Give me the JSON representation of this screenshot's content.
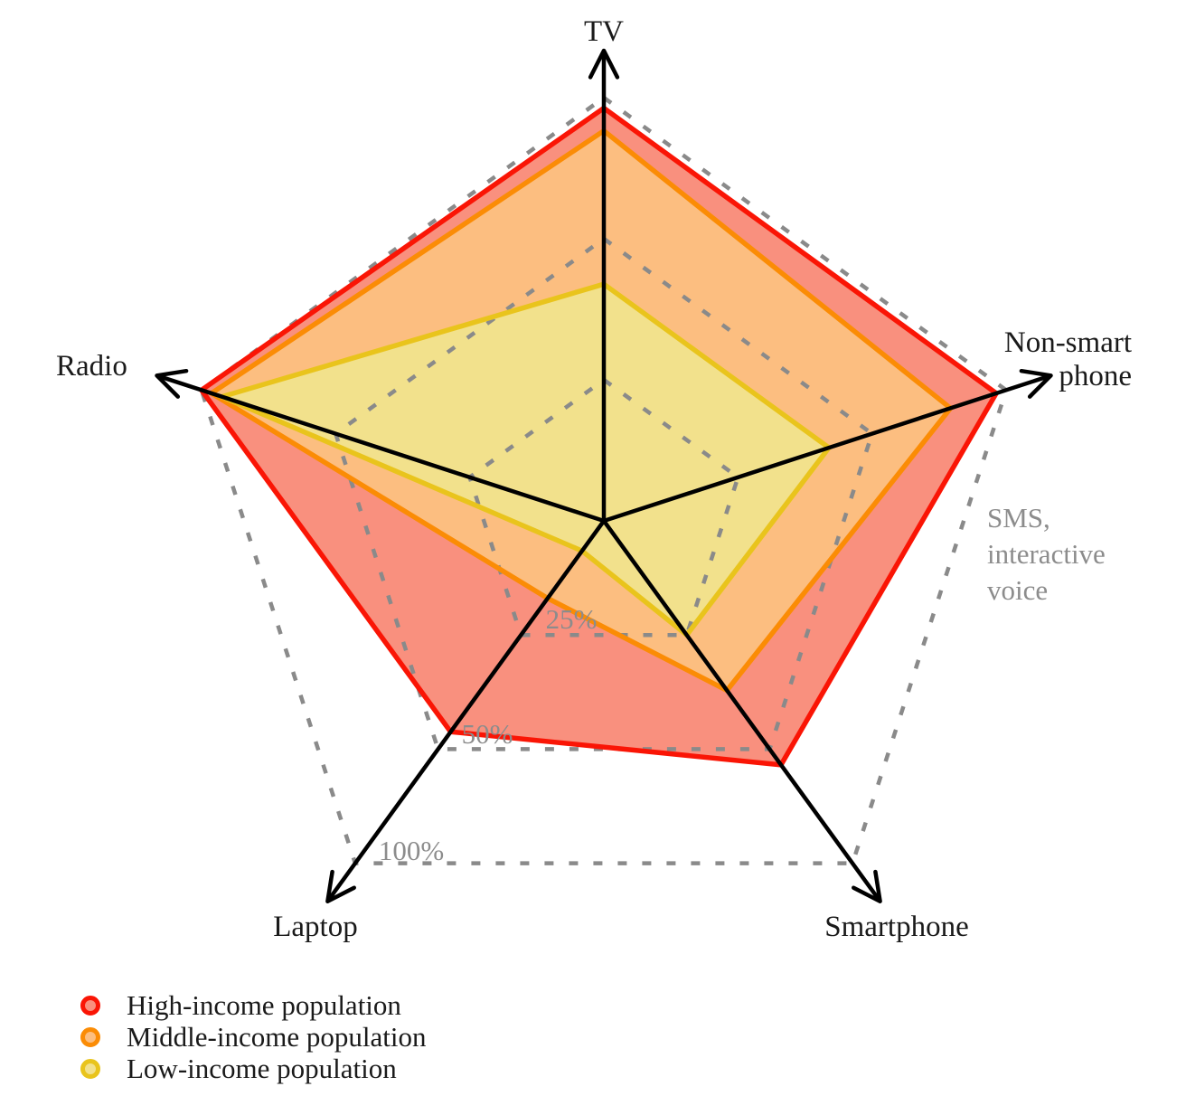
{
  "chart_data": {
    "type": "radar",
    "categories": [
      "TV",
      "Non-smart phone",
      "Smartphone",
      "Laptop",
      "Radio"
    ],
    "series": [
      {
        "name": "High-income population",
        "values": [
          95,
          95,
          55,
          45,
          100
        ],
        "stroke_color": "#fa1505",
        "fill_color": "#f9907e"
      },
      {
        "name": "Middle-income population",
        "values": [
          85,
          75,
          35,
          20,
          95
        ],
        "stroke_color": "#fb8c05",
        "fill_color": "#fcbe80"
      },
      {
        "name": "Low-income population",
        "values": [
          40,
          40,
          25,
          15,
          90
        ],
        "stroke_color": "#e9c41c",
        "fill_color": "#f2e18c"
      }
    ],
    "scale": {
      "type": "log2-radial",
      "unit": "%",
      "center_value": 12.5,
      "gridlines": [
        {
          "value": 25,
          "label": "25%"
        },
        {
          "value": 50,
          "label": "50%"
        },
        {
          "value": 100,
          "label": "100%"
        }
      ]
    },
    "grid_style": "dashed",
    "grid_color": "#8a8a8a",
    "axis_color": "#000000",
    "label_color": "#1a1a1a",
    "annotation_color": "#8c8c8c",
    "legend_position": "bottom-left",
    "annotation": {
      "lines": [
        "SMS,",
        "interactive",
        "voice"
      ]
    }
  },
  "labels": {
    "tv": "TV",
    "non_smart_line1": "Non-smart",
    "non_smart_line2": "phone",
    "smartphone": "Smartphone",
    "laptop": "Laptop",
    "radio": "Radio"
  }
}
